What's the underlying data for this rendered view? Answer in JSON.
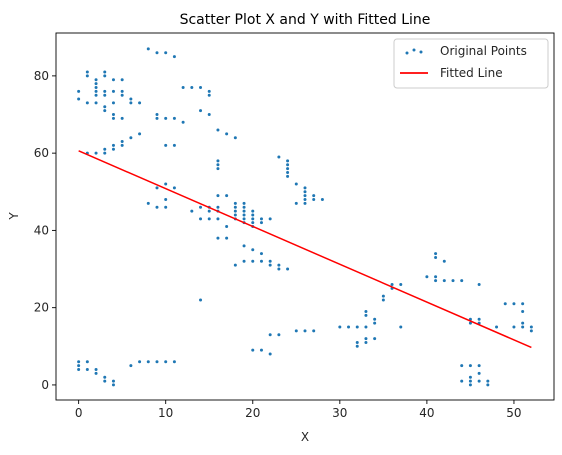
{
  "chart_data": {
    "type": "scatter",
    "title": "Scatter Plot X and Y with Fitted Line",
    "xlabel": "X",
    "ylabel": "Y",
    "xlim": [
      -2.6,
      54.6
    ],
    "ylim": [
      -3.9,
      91.1
    ],
    "xticks": [
      0,
      10,
      20,
      30,
      40,
      50
    ],
    "yticks": [
      0,
      20,
      40,
      60,
      80
    ],
    "grid": false,
    "legend_position": "top-right",
    "colors": {
      "points": "#1f77b4",
      "line": "#ff0000"
    },
    "series": [
      {
        "name": "Original Points",
        "type": "scatter",
        "points": [
          [
            0,
            4
          ],
          [
            0,
            5
          ],
          [
            0,
            6
          ],
          [
            0,
            74
          ],
          [
            0,
            76
          ],
          [
            1,
            4
          ],
          [
            1,
            6
          ],
          [
            1,
            60
          ],
          [
            1,
            73
          ],
          [
            1,
            80
          ],
          [
            1,
            81
          ],
          [
            2,
            3
          ],
          [
            2,
            4
          ],
          [
            2,
            60
          ],
          [
            2,
            73
          ],
          [
            2,
            75
          ],
          [
            2,
            76
          ],
          [
            2,
            77
          ],
          [
            2,
            78
          ],
          [
            2,
            79
          ],
          [
            3,
            1
          ],
          [
            3,
            2
          ],
          [
            3,
            60
          ],
          [
            3,
            61
          ],
          [
            3,
            71
          ],
          [
            3,
            72
          ],
          [
            3,
            75
          ],
          [
            3,
            76
          ],
          [
            3,
            80
          ],
          [
            3,
            81
          ],
          [
            4,
            0
          ],
          [
            4,
            1
          ],
          [
            4,
            61
          ],
          [
            4,
            62
          ],
          [
            4,
            69
          ],
          [
            4,
            70
          ],
          [
            4,
            73
          ],
          [
            4,
            76
          ],
          [
            4,
            79
          ],
          [
            5,
            62
          ],
          [
            5,
            63
          ],
          [
            5,
            69
          ],
          [
            5,
            75
          ],
          [
            5,
            76
          ],
          [
            5,
            79
          ],
          [
            6,
            5
          ],
          [
            6,
            64
          ],
          [
            6,
            73
          ],
          [
            6,
            74
          ],
          [
            7,
            6
          ],
          [
            7,
            65
          ],
          [
            7,
            73
          ],
          [
            8,
            6
          ],
          [
            8,
            47
          ],
          [
            8,
            87
          ],
          [
            9,
            6
          ],
          [
            9,
            46
          ],
          [
            9,
            51
          ],
          [
            9,
            69
          ],
          [
            9,
            70
          ],
          [
            9,
            86
          ],
          [
            10,
            6
          ],
          [
            10,
            46
          ],
          [
            10,
            48
          ],
          [
            10,
            52
          ],
          [
            10,
            62
          ],
          [
            10,
            69
          ],
          [
            10,
            86
          ],
          [
            11,
            6
          ],
          [
            11,
            51
          ],
          [
            11,
            62
          ],
          [
            11,
            69
          ],
          [
            11,
            85
          ],
          [
            12,
            68
          ],
          [
            12,
            77
          ],
          [
            13,
            45
          ],
          [
            13,
            77
          ],
          [
            14,
            22
          ],
          [
            14,
            43
          ],
          [
            14,
            46
          ],
          [
            14,
            71
          ],
          [
            14,
            77
          ],
          [
            15,
            43
          ],
          [
            15,
            45
          ],
          [
            15,
            46
          ],
          [
            15,
            70
          ],
          [
            15,
            75
          ],
          [
            15,
            76
          ],
          [
            16,
            38
          ],
          [
            16,
            43
          ],
          [
            16,
            45
          ],
          [
            16,
            46
          ],
          [
            16,
            49
          ],
          [
            16,
            56
          ],
          [
            16,
            57
          ],
          [
            16,
            58
          ],
          [
            16,
            66
          ],
          [
            17,
            38
          ],
          [
            17,
            41
          ],
          [
            17,
            49
          ],
          [
            17,
            65
          ],
          [
            18,
            31
          ],
          [
            18,
            43
          ],
          [
            18,
            44
          ],
          [
            18,
            45
          ],
          [
            18,
            46
          ],
          [
            18,
            47
          ],
          [
            18,
            64
          ],
          [
            19,
            32
          ],
          [
            19,
            36
          ],
          [
            19,
            42
          ],
          [
            19,
            43
          ],
          [
            19,
            44
          ],
          [
            19,
            45
          ],
          [
            19,
            46
          ],
          [
            19,
            47
          ],
          [
            20,
            9
          ],
          [
            20,
            32
          ],
          [
            20,
            35
          ],
          [
            20,
            41
          ],
          [
            20,
            42
          ],
          [
            20,
            43
          ],
          [
            20,
            44
          ],
          [
            20,
            45
          ],
          [
            21,
            9
          ],
          [
            21,
            32
          ],
          [
            21,
            34
          ],
          [
            21,
            42
          ],
          [
            21,
            43
          ],
          [
            22,
            8
          ],
          [
            22,
            13
          ],
          [
            22,
            31
          ],
          [
            22,
            32
          ],
          [
            22,
            43
          ],
          [
            23,
            13
          ],
          [
            23,
            30
          ],
          [
            23,
            31
          ],
          [
            23,
            59
          ],
          [
            24,
            30
          ],
          [
            24,
            54
          ],
          [
            24,
            55
          ],
          [
            24,
            56
          ],
          [
            24,
            57
          ],
          [
            24,
            58
          ],
          [
            25,
            14
          ],
          [
            25,
            47
          ],
          [
            25,
            52
          ],
          [
            26,
            14
          ],
          [
            26,
            47
          ],
          [
            26,
            48
          ],
          [
            26,
            49
          ],
          [
            26,
            50
          ],
          [
            26,
            51
          ],
          [
            27,
            14
          ],
          [
            27,
            48
          ],
          [
            27,
            49
          ],
          [
            28,
            48
          ],
          [
            30,
            15
          ],
          [
            31,
            15
          ],
          [
            32,
            10
          ],
          [
            32,
            11
          ],
          [
            32,
            15
          ],
          [
            33,
            11
          ],
          [
            33,
            12
          ],
          [
            33,
            15
          ],
          [
            33,
            18
          ],
          [
            33,
            19
          ],
          [
            34,
            12
          ],
          [
            34,
            16
          ],
          [
            34,
            17
          ],
          [
            35,
            22
          ],
          [
            35,
            23
          ],
          [
            36,
            25
          ],
          [
            36,
            26
          ],
          [
            37,
            15
          ],
          [
            37,
            26
          ],
          [
            40,
            28
          ],
          [
            41,
            27
          ],
          [
            41,
            28
          ],
          [
            41,
            33
          ],
          [
            41,
            34
          ],
          [
            42,
            27
          ],
          [
            42,
            32
          ],
          [
            43,
            27
          ],
          [
            44,
            1
          ],
          [
            44,
            5
          ],
          [
            44,
            27
          ],
          [
            45,
            0
          ],
          [
            45,
            1
          ],
          [
            45,
            2
          ],
          [
            45,
            5
          ],
          [
            45,
            16
          ],
          [
            45,
            17
          ],
          [
            46,
            1
          ],
          [
            46,
            3
          ],
          [
            46,
            5
          ],
          [
            46,
            16
          ],
          [
            46,
            17
          ],
          [
            46,
            26
          ],
          [
            47,
            0
          ],
          [
            47,
            1
          ],
          [
            48,
            15
          ],
          [
            49,
            21
          ],
          [
            50,
            15
          ],
          [
            50,
            21
          ],
          [
            51,
            15
          ],
          [
            51,
            16
          ],
          [
            51,
            19
          ],
          [
            51,
            21
          ],
          [
            52,
            14
          ],
          [
            52,
            15
          ]
        ]
      },
      {
        "name": "Fitted Line",
        "type": "line",
        "points": [
          [
            0,
            60.6
          ],
          [
            52,
            9.7
          ]
        ]
      }
    ]
  }
}
